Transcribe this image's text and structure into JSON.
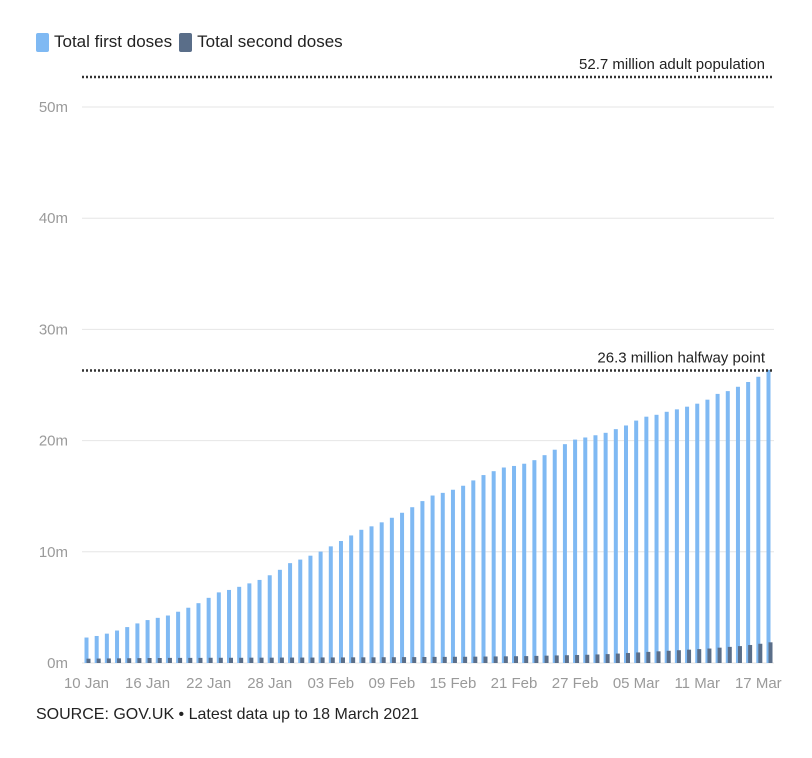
{
  "legend": {
    "first_label": "Total first doses",
    "second_label": "Total second doses"
  },
  "colors": {
    "first": "#7fb9f3",
    "second": "#5a6e89",
    "grid": "#e6e6e6",
    "reference_line": "#333333"
  },
  "source": "SOURCE: GOV.UK • Latest data up to 18 March 2021",
  "chart_data": {
    "type": "bar",
    "title": "",
    "xlabel": "",
    "ylabel": "",
    "ylim": [
      0,
      53
    ],
    "y_unit": "millions",
    "y_ticks": [
      "0m",
      "10m",
      "20m",
      "30m",
      "40m",
      "50m"
    ],
    "y_tick_values": [
      0,
      10,
      20,
      30,
      40,
      50
    ],
    "grid": true,
    "legend_position": "top-left",
    "categories": [
      "10 Jan",
      "11 Jan",
      "12 Jan",
      "13 Jan",
      "14 Jan",
      "15 Jan",
      "16 Jan",
      "17 Jan",
      "18 Jan",
      "19 Jan",
      "20 Jan",
      "21 Jan",
      "22 Jan",
      "23 Jan",
      "24 Jan",
      "25 Jan",
      "26 Jan",
      "27 Jan",
      "28 Jan",
      "29 Jan",
      "30 Jan",
      "31 Jan",
      "01 Feb",
      "02 Feb",
      "03 Feb",
      "04 Feb",
      "05 Feb",
      "06 Feb",
      "07 Feb",
      "08 Feb",
      "09 Feb",
      "10 Feb",
      "11 Feb",
      "12 Feb",
      "13 Feb",
      "14 Feb",
      "15 Feb",
      "16 Feb",
      "17 Feb",
      "18 Feb",
      "19 Feb",
      "20 Feb",
      "21 Feb",
      "22 Feb",
      "23 Feb",
      "24 Feb",
      "25 Feb",
      "26 Feb",
      "27 Feb",
      "28 Feb",
      "01 Mar",
      "02 Mar",
      "03 Mar",
      "04 Mar",
      "05 Mar",
      "06 Mar",
      "07 Mar",
      "08 Mar",
      "09 Mar",
      "10 Mar",
      "11 Mar",
      "12 Mar",
      "13 Mar",
      "14 Mar",
      "15 Mar",
      "16 Mar",
      "17 Mar",
      "18 Mar"
    ],
    "x_ticks": [
      "10 Jan",
      "16 Jan",
      "22 Jan",
      "28 Jan",
      "03 Feb",
      "09 Feb",
      "15 Feb",
      "21 Feb",
      "27 Feb",
      "05 Mar",
      "11 Mar",
      "17 Mar"
    ],
    "series": [
      {
        "name": "Total first doses",
        "values": [
          2.29,
          2.43,
          2.64,
          2.92,
          3.23,
          3.56,
          3.86,
          4.06,
          4.27,
          4.61,
          4.97,
          5.38,
          5.86,
          6.35,
          6.57,
          6.85,
          7.16,
          7.47,
          7.89,
          8.38,
          8.98,
          9.3,
          9.65,
          10.02,
          10.49,
          10.97,
          11.47,
          11.98,
          12.29,
          12.65,
          13.06,
          13.51,
          14.01,
          14.56,
          15.06,
          15.3,
          15.58,
          15.94,
          16.42,
          16.9,
          17.25,
          17.58,
          17.72,
          17.92,
          18.24,
          18.69,
          19.18,
          19.68,
          20.09,
          20.28,
          20.48,
          20.7,
          21.03,
          21.36,
          21.8,
          22.15,
          22.32,
          22.59,
          22.81,
          23.05,
          23.32,
          23.68,
          24.2,
          24.45,
          24.84,
          25.27,
          25.74,
          26.36
        ]
      },
      {
        "name": "Total second doses",
        "values": [
          0.39,
          0.4,
          0.41,
          0.42,
          0.43,
          0.44,
          0.45,
          0.45,
          0.46,
          0.46,
          0.46,
          0.46,
          0.47,
          0.47,
          0.47,
          0.47,
          0.48,
          0.48,
          0.48,
          0.49,
          0.49,
          0.49,
          0.49,
          0.5,
          0.5,
          0.5,
          0.51,
          0.51,
          0.51,
          0.52,
          0.52,
          0.53,
          0.53,
          0.54,
          0.55,
          0.55,
          0.56,
          0.56,
          0.57,
          0.58,
          0.59,
          0.6,
          0.61,
          0.62,
          0.64,
          0.66,
          0.68,
          0.7,
          0.72,
          0.74,
          0.77,
          0.8,
          0.85,
          0.9,
          0.95,
          1.0,
          1.05,
          1.1,
          1.15,
          1.2,
          1.25,
          1.3,
          1.38,
          1.45,
          1.52,
          1.62,
          1.73,
          1.86
        ]
      }
    ],
    "annotations": [
      {
        "value": 52.7,
        "label": "52.7 million adult population"
      },
      {
        "value": 26.3,
        "label": "26.3 million halfway point"
      }
    ]
  }
}
